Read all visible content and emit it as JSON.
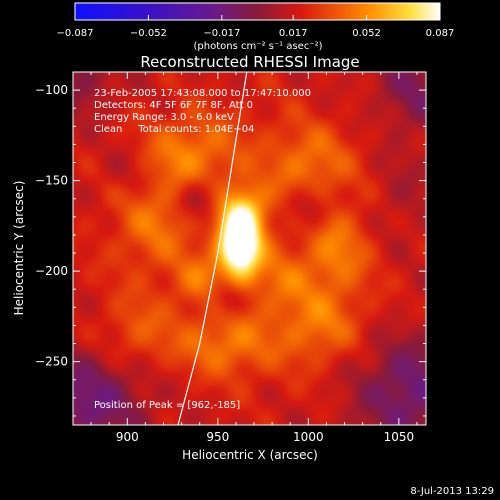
{
  "chart_data": {
    "type": "heatmap",
    "title": "Reconstructed RHESSI Image",
    "xlabel": "Heliocentric X (arcsec)",
    "ylabel": "Heliocentric Y (arcsec)",
    "xlim": [
      870,
      1065
    ],
    "ylim": [
      -285,
      -90
    ],
    "x_ticks": [
      900,
      950,
      1000,
      1050
    ],
    "y_ticks": [
      -100,
      -150,
      -200,
      -250
    ],
    "x_tick_labels": [
      "900",
      "950",
      "1000",
      "1050"
    ],
    "y_tick_labels": [
      "−100",
      "−150",
      "−200",
      "−250"
    ],
    "colorbar": {
      "min": -0.087,
      "max": 0.087,
      "tick_values": [
        -0.087,
        -0.052,
        -0.017,
        0.017,
        0.052,
        0.087
      ],
      "tick_labels": [
        "−0.087",
        "−0.052",
        "−0.017",
        "0.017",
        "0.052",
        "0.087"
      ],
      "colormap": "blue-purple-red-yellow-white",
      "unit_label": "(photons cm⁻² s⁻¹ asec⁻²)"
    },
    "info_lines": [
      "23-Feb-2005 17:43:08.000 to 17:47:10.000",
      "Detectors: 4F 5F 6F 7F 8F, Att 0",
      "Energy Range: 3.0 - 6.0 keV",
      "Clean     Total counts: 1.04E+04"
    ],
    "peak": {
      "x": 962,
      "y": -185,
      "label": "Position of Peak = [962,-185]"
    },
    "limb_points": [
      [
        928,
        -285
      ],
      [
        940,
        -240
      ],
      [
        950,
        -190
      ],
      [
        958,
        -140
      ],
      [
        966,
        -90
      ]
    ],
    "sources": [
      {
        "x": 962,
        "y": -185,
        "amp": 0.095,
        "sx": 8,
        "sy": 13
      },
      {
        "x": 965,
        "y": -165,
        "amp": 0.03,
        "sx": 10,
        "sy": 10
      },
      {
        "x": 935,
        "y": -135,
        "amp": 0.025,
        "sx": 18,
        "sy": 14
      },
      {
        "x": 1000,
        "y": -140,
        "amp": 0.022,
        "sx": 16,
        "sy": 14
      },
      {
        "x": 915,
        "y": -175,
        "amp": 0.02,
        "sx": 14,
        "sy": 16
      },
      {
        "x": 1015,
        "y": -190,
        "amp": 0.024,
        "sx": 12,
        "sy": 16
      },
      {
        "x": 1005,
        "y": -230,
        "amp": 0.022,
        "sx": 16,
        "sy": 14
      },
      {
        "x": 955,
        "y": -240,
        "amp": 0.024,
        "sx": 18,
        "sy": 12
      },
      {
        "x": 905,
        "y": -235,
        "amp": 0.016,
        "sx": 14,
        "sy": 14
      },
      {
        "x": 985,
        "y": -205,
        "amp": 0.018,
        "sx": 12,
        "sy": 12
      },
      {
        "x": 940,
        "y": -205,
        "amp": 0.02,
        "sx": 10,
        "sy": 10
      },
      {
        "x": 940,
        "y": -160,
        "amp": -0.022,
        "sx": 8,
        "sy": 8
      },
      {
        "x": 1000,
        "y": -165,
        "amp": -0.02,
        "sx": 8,
        "sy": 8
      },
      {
        "x": 955,
        "y": -215,
        "amp": -0.02,
        "sx": 7,
        "sy": 7
      },
      {
        "x": 880,
        "y": -270,
        "amp": -0.03,
        "sx": 22,
        "sy": 18
      },
      {
        "x": 1055,
        "y": -265,
        "amp": -0.03,
        "sx": 20,
        "sy": 20
      },
      {
        "x": 1060,
        "y": -100,
        "amp": -0.02,
        "sx": 15,
        "sy": 15
      },
      {
        "x": 875,
        "y": -95,
        "amp": -0.015,
        "sx": 12,
        "sy": 12
      },
      {
        "x": 1050,
        "y": -160,
        "amp": -0.01,
        "sx": 12,
        "sy": 20
      },
      {
        "x": 900,
        "y": -145,
        "amp": -0.01,
        "sx": 10,
        "sy": 10
      }
    ]
  },
  "footer": {
    "date": "8-Jul-2013 13:29"
  }
}
